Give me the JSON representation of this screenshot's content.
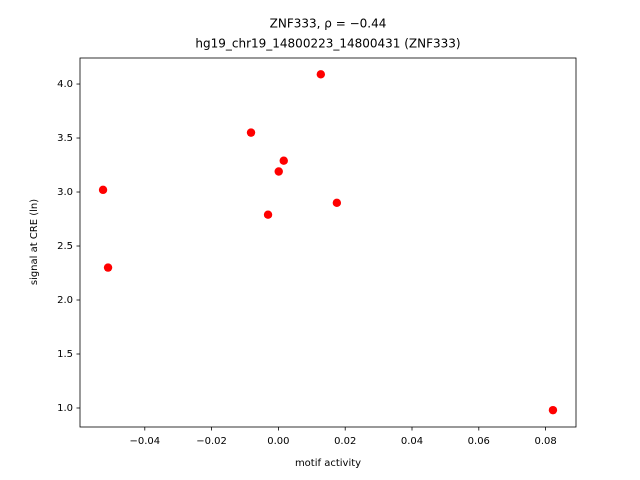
{
  "chart_data": {
    "type": "scatter",
    "title": "ZNF333, ρ = −0.44",
    "subtitle": "hg19_chr19_14800223_14800431 (ZNF333)",
    "x_label": "motif activity",
    "y_label": "signal at CRE (ln)",
    "color": "#ff0000",
    "x": [
      -0.0525,
      -0.051,
      -0.0082,
      -0.0031,
      0.0001,
      0.0016,
      0.0127,
      0.0175,
      0.0822
    ],
    "values": [
      3.02,
      2.3,
      3.55,
      2.79,
      3.19,
      3.29,
      4.09,
      2.9,
      0.98
    ],
    "xlim": [
      -0.0594,
      0.0891
    ],
    "ylim": [
      0.824,
      4.241
    ],
    "xticks": [
      {
        "value": -0.04,
        "label": "−0.04"
      },
      {
        "value": -0.02,
        "label": "−0.02"
      },
      {
        "value": 0,
        "label": "0.00"
      },
      0.02,
      0.04,
      0.06,
      0.08
    ],
    "yticks": [
      {
        "value": 1,
        "label": "1.0"
      },
      1.5,
      {
        "value": 2,
        "label": "2.0"
      },
      2.5,
      {
        "value": 3,
        "label": "3.0"
      },
      3.5,
      {
        "value": 4,
        "label": "4.0"
      }
    ],
    "grid": false
  }
}
